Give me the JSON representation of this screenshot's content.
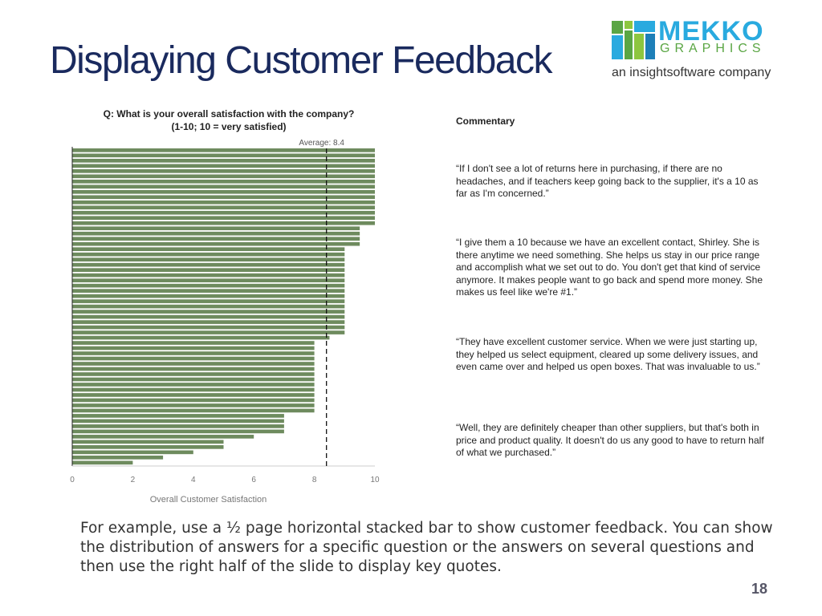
{
  "slide": {
    "title": "Displaying Customer Feedback",
    "page_number": "18",
    "caption": "For example, use a ½ page horizontal stacked bar to show customer feedback.  You can show the distribution of answers for a specific question or the answers on several questions and then use the right half of the slide to display key quotes."
  },
  "logo": {
    "brand": "MEKKO",
    "brand_sub": "GRAPHICS",
    "tagline": "an insightsoftware company",
    "colors": {
      "blue": "#29aadf",
      "green": "#5aa644"
    }
  },
  "commentary": {
    "heading": "Commentary",
    "quotes": [
      "“If I don't see a lot of returns here in purchasing, if there are no headaches, and if teachers keep going back to the supplier, it's a 10 as far as I'm concerned.”",
      "“I give them a 10 because we have an excellent contact, Shirley.  She is there anytime we need something.  She helps us stay in our price range and accomplish what we set out to do.  You don't get that kind of service anymore.  It makes people want to go back and spend more money.  She makes us feel like we're #1.”",
      "“They have excellent customer service.  When we were just starting up, they helped us select equipment, cleared up some delivery issues, and even came over and helped us open boxes.  That was invaluable to us.”",
      "“Well, they are definitely cheaper than other suppliers, but that's both in price and product quality. It doesn't do us any good to have to return half of what we purchased.”"
    ]
  },
  "chart_data": {
    "type": "bar",
    "orientation": "horizontal",
    "title": "Q: What is your overall satisfaction with the company?",
    "subtitle": "(1-10; 10 = very satisfied)",
    "xlabel": "Overall Customer Satisfaction",
    "xlim": [
      0,
      10
    ],
    "xticks": [
      "0",
      "2",
      "4",
      "6",
      "8",
      "10"
    ],
    "average_label": "Average: 8.4",
    "average": 8.4,
    "bar_color": "#6e8b5e",
    "values": [
      10,
      10,
      10,
      10,
      10,
      10,
      10,
      10,
      10,
      10,
      10,
      10,
      10,
      10,
      10,
      9.5,
      9.5,
      9.5,
      9.5,
      9,
      9,
      9,
      9,
      9,
      9,
      9,
      9,
      9,
      9,
      9,
      9,
      9,
      9,
      9,
      9,
      9,
      8.5,
      8,
      8,
      8,
      8,
      8,
      8,
      8,
      8,
      8,
      8,
      8,
      8,
      8,
      8,
      7,
      7,
      7,
      7,
      6,
      5,
      5,
      4,
      3,
      2
    ]
  }
}
